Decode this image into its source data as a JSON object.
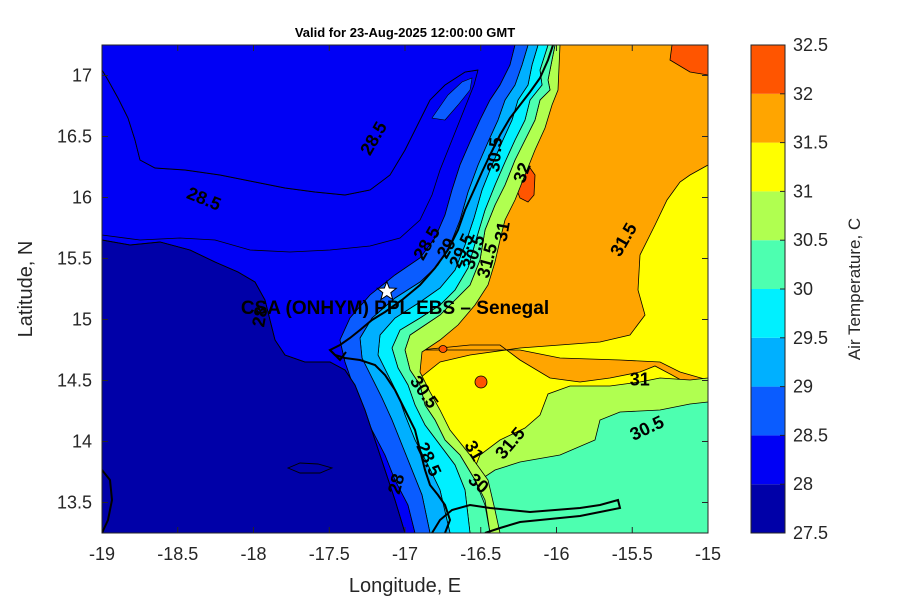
{
  "title": "Valid for 23-Aug-2025 12:00:00 GMT",
  "site_label": "CSA (ONHYM) PPL EBS  – Senegal",
  "axes": {
    "xlabel": "Longitude, E",
    "ylabel": "Latitude, N",
    "xlim": [
      -19,
      -15
    ],
    "ylim": [
      13.25,
      17.25
    ],
    "xticks": [
      "-19",
      "-18.5",
      "-18",
      "-17.5",
      "-17",
      "-16.5",
      "-16",
      "-15.5",
      "-15"
    ],
    "yticks": [
      "13.5",
      "14",
      "14.5",
      "15",
      "15.5",
      "16",
      "16.5",
      "17"
    ]
  },
  "colorbar": {
    "label": "Air Temperature, C",
    "levels": [
      "27.5",
      "28",
      "28.5",
      "29",
      "29.5",
      "30",
      "30.5",
      "31",
      "31.5",
      "32",
      "32.5"
    ],
    "colors": [
      "#0000a8",
      "#0000f5",
      "#0a5cff",
      "#00b0ff",
      "#00f0ff",
      "#4dffb0",
      "#b0ff50",
      "#ffff00",
      "#ffa500",
      "#ff5500",
      "#ff0000"
    ]
  },
  "contour_labels": [
    {
      "text": "28.5",
      "lon": -17.2,
      "lat": 16.48,
      "angle": -60
    },
    {
      "text": "28.5",
      "lon": -18.33,
      "lat": 15.98,
      "angle": 22
    },
    {
      "text": "28.5",
      "lon": -16.85,
      "lat": 15.62,
      "angle": -60
    },
    {
      "text": "29",
      "lon": -16.72,
      "lat": 15.58,
      "angle": -60
    },
    {
      "text": "29.5",
      "lon": -16.62,
      "lat": 15.56,
      "angle": -65
    },
    {
      "text": "30.5",
      "lon": -16.54,
      "lat": 15.55,
      "angle": -70
    },
    {
      "text": "31.5",
      "lon": -16.45,
      "lat": 15.48,
      "angle": -75
    },
    {
      "text": "31",
      "lon": -16.35,
      "lat": 15.72,
      "angle": -80
    },
    {
      "text": "30.5",
      "lon": -16.4,
      "lat": 16.35,
      "angle": -85
    },
    {
      "text": "32",
      "lon": -16.22,
      "lat": 16.2,
      "angle": -70
    },
    {
      "text": "31.5",
      "lon": -15.55,
      "lat": 15.65,
      "angle": -60
    },
    {
      "text": "31",
      "lon": -15.45,
      "lat": 14.5,
      "angle": 0
    },
    {
      "text": "30.5",
      "lon": -15.4,
      "lat": 14.1,
      "angle": -25
    },
    {
      "text": "31.5",
      "lon": -16.3,
      "lat": 13.98,
      "angle": -50
    },
    {
      "text": "30.5",
      "lon": -16.88,
      "lat": 14.4,
      "angle": 55
    },
    {
      "text": "28.5",
      "lon": -16.85,
      "lat": 13.85,
      "angle": 65
    },
    {
      "text": "28",
      "lon": -17.05,
      "lat": 13.65,
      "angle": -75
    },
    {
      "text": "28",
      "lon": -17.95,
      "lat": 15.02,
      "angle": -80
    },
    {
      "text": "31",
      "lon": -16.55,
      "lat": 13.92,
      "angle": 60
    },
    {
      "text": "30",
      "lon": -16.52,
      "lat": 13.65,
      "angle": 40
    }
  ],
  "site": {
    "lon": -17.12,
    "lat": 15.23
  }
}
